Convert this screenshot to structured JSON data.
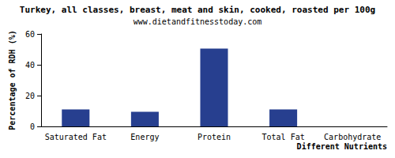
{
  "chart_data": {
    "type": "bar",
    "title": "Turkey, all classes, breast, meat and skin, cooked, roasted per 100g",
    "subtitle": "www.dietandfitnesstoday.com",
    "x_label": "Different Nutrients",
    "y_label": "Percentage of RDH (%)",
    "categories": [
      "Saturated Fat",
      "Energy",
      "Protein",
      "Total Fat",
      "Carbohydrate"
    ],
    "values": [
      11,
      9.5,
      50.5,
      11,
      0
    ],
    "color": "#273f8f",
    "ylim": [
      0,
      60
    ],
    "yticks": [
      0,
      20,
      40,
      60
    ],
    "grid": false
  }
}
